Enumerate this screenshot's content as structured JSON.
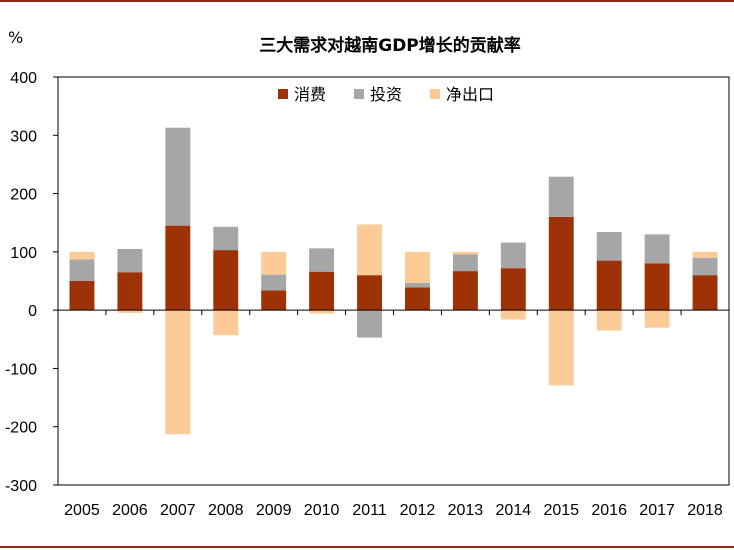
{
  "chart_data": {
    "type": "bar",
    "stacked": true,
    "title": "三大需求对越南GDP增长的贡献率",
    "ylabel": "%",
    "xlabel": "",
    "ylim": [
      -300,
      400
    ],
    "yticks": [
      400,
      300,
      200,
      100,
      0,
      -100,
      -200,
      -300
    ],
    "categories": [
      "2005",
      "2006",
      "2007",
      "2008",
      "2009",
      "2010",
      "2011",
      "2012",
      "2013",
      "2014",
      "2015",
      "2016",
      "2017",
      "2018"
    ],
    "series": [
      {
        "name": "消费",
        "color": "#9c3206",
        "values": [
          50,
          65,
          145,
          103,
          34,
          66,
          60,
          39,
          67,
          72,
          160,
          85,
          80,
          60
        ]
      },
      {
        "name": "投资",
        "color": "#a6a6a6",
        "values": [
          37,
          40,
          168,
          40,
          27,
          40,
          -47,
          8,
          29,
          44,
          69,
          49,
          50,
          30
        ]
      },
      {
        "name": "净出口",
        "color": "#fccb97",
        "values": [
          13,
          -5,
          -213,
          -43,
          39,
          -6,
          87,
          53,
          4,
          -16,
          -129,
          -35,
          -30,
          10
        ]
      }
    ],
    "legend_position": "top-center",
    "grid": false
  }
}
